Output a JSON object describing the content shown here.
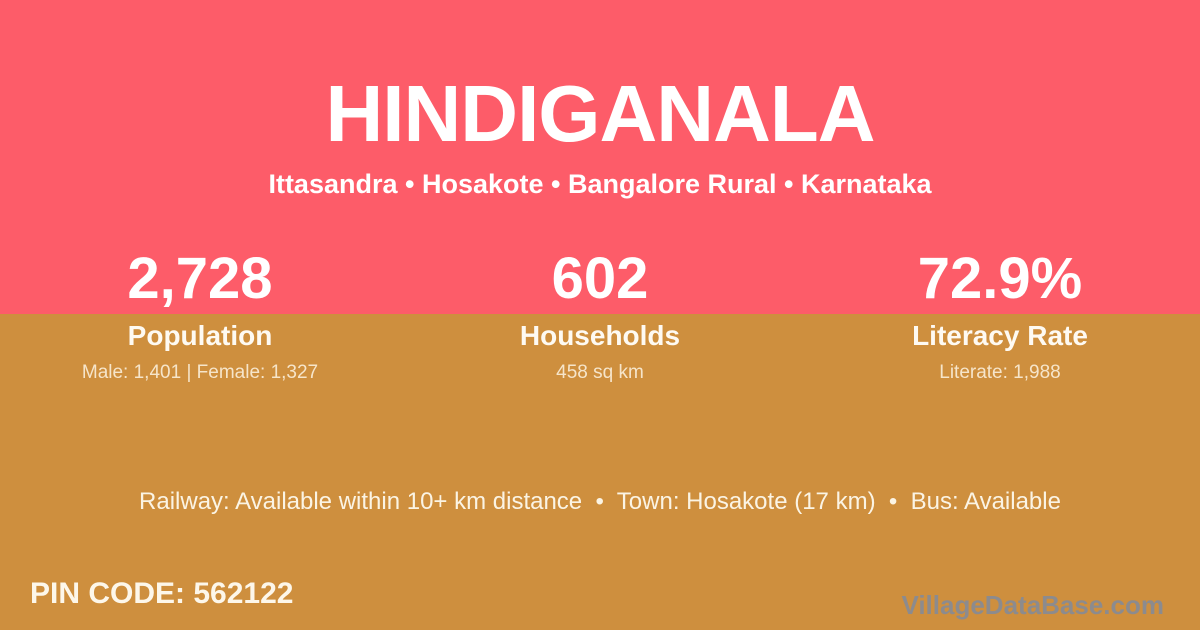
{
  "card": {
    "title": "HINDIGANALA",
    "subtitle": "Ittasandra • Hosakote • Bangalore Rural • Karnataka",
    "stats": [
      {
        "value": "2,728",
        "label": "Population",
        "detail": "Male: 1,401 | Female: 1,327"
      },
      {
        "value": "602",
        "label": "Households",
        "detail": "458 sq km"
      },
      {
        "value": "72.9%",
        "label": "Literacy Rate",
        "detail": "Literate: 1,988"
      }
    ],
    "info_line": "Railway: Available within 10+ km distance  •  Town: Hosakote (17 km)  •  Bus: Available",
    "pin_code": "PIN CODE: 562122",
    "watermark": "VillageDataBase.com",
    "colors": {
      "top_band": "#fd5c69",
      "bottom_band": "#ce8f3e",
      "primary_text": "#ffffff",
      "muted_text": "#f5e9d4",
      "watermark_text": "#8c8b8e"
    }
  }
}
